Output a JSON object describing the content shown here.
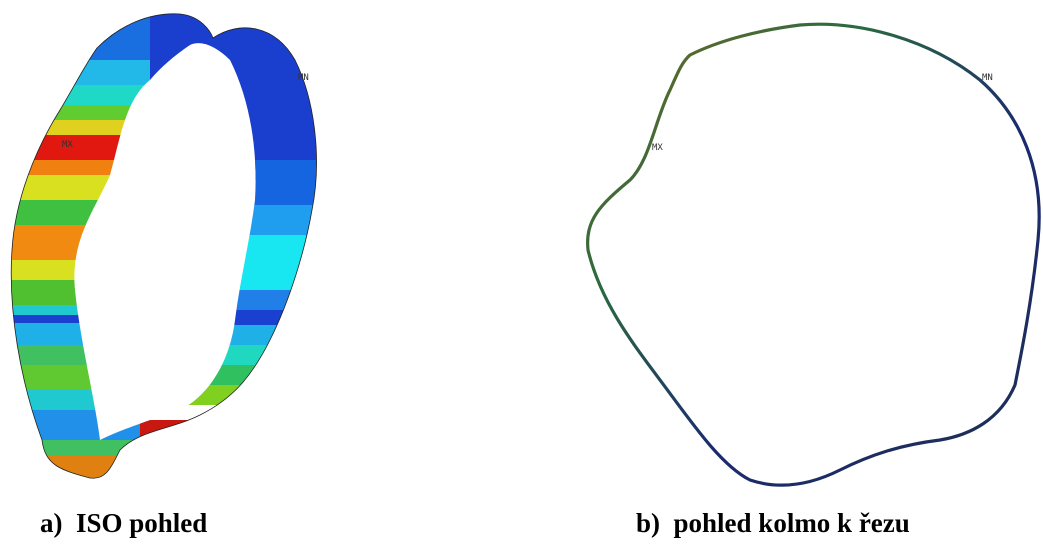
{
  "panel_a": {
    "max_label": "MX",
    "min_label": "MN"
  },
  "panel_b": {
    "max_label": "MX",
    "min_label": "MN"
  },
  "captions": {
    "a_letter": "a)",
    "a_text": "ISO pohled",
    "b_letter": "b)",
    "b_text": "pohled kolmo k řezu"
  },
  "colors": {
    "min_blue": "#1040c8",
    "cyan": "#10e0f0",
    "green": "#20c030",
    "yellow": "#e0e020",
    "orange": "#f08c10",
    "max_red": "#e01010"
  }
}
